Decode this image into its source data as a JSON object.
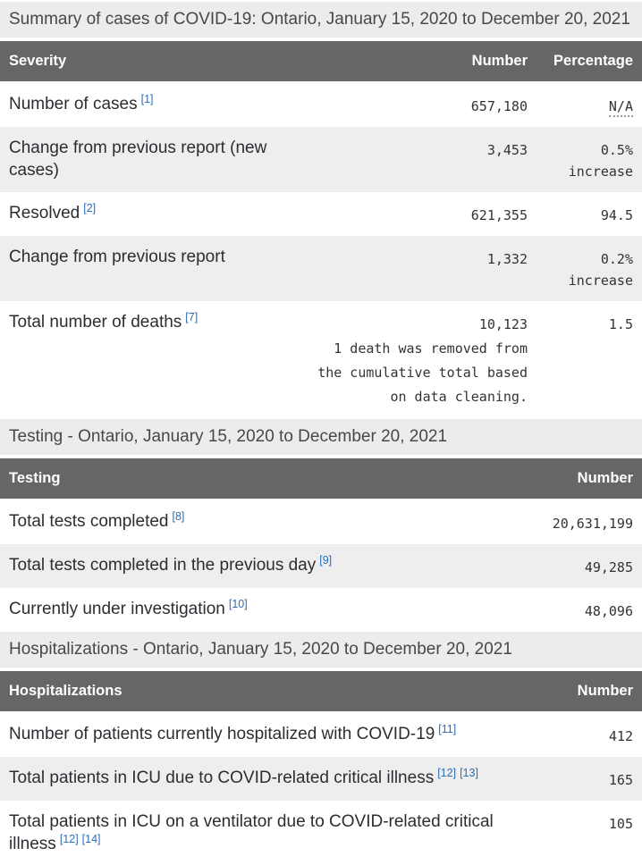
{
  "colors": {
    "header_bg": "#666668",
    "stripe_bg": "#eeeeef",
    "caption_bg": "#ececed",
    "footnote_blue": "#2b6cb8",
    "header_text": "#ffffff",
    "body_text": "#2c2d32",
    "number_text": "#333333"
  },
  "sections": [
    {
      "caption": "Summary of cases of COVID-19: Ontario, January 15, 2020 to December 20, 2021",
      "columns": [
        "Severity",
        "Number",
        "Percentage"
      ],
      "rows": [
        {
          "label": "Number of cases",
          "footnotes": [
            "[1]"
          ],
          "number": "657,180",
          "percentage": [
            "N/A"
          ],
          "percentage_abbr": true
        },
        {
          "label": "Change from previous report (new cases)",
          "footnotes": [],
          "number": "3,453",
          "percentage": [
            "0.5%",
            "increase"
          ]
        },
        {
          "label": "Resolved",
          "footnotes": [
            "[2]"
          ],
          "number": "621,355",
          "percentage": [
            "94.5"
          ]
        },
        {
          "label": "Change from previous report",
          "footnotes": [],
          "number": "1,332",
          "percentage": [
            "0.2%",
            "increase"
          ]
        },
        {
          "label": "Total number of deaths",
          "footnotes": [
            "[7]"
          ],
          "number": "10,123",
          "number_note": [
            "1 death was removed from",
            "the cumulative total based",
            "on data cleaning."
          ],
          "percentage": [
            "1.5"
          ]
        }
      ]
    },
    {
      "caption": "Testing - Ontario, January 15, 2020 to December 20, 2021",
      "columns": [
        "Testing",
        "Number"
      ],
      "rows": [
        {
          "label": "Total tests completed",
          "footnotes": [
            "[8]"
          ],
          "number": "20,631,199"
        },
        {
          "label": "Total tests completed in the previous day",
          "footnotes": [
            "[9]"
          ],
          "number": "49,285"
        },
        {
          "label": "Currently under investigation",
          "footnotes": [
            "[10]"
          ],
          "number": "48,096"
        }
      ]
    },
    {
      "caption": "Hospitalizations - Ontario, January 15, 2020 to December 20, 2021",
      "columns": [
        "Hospitalizations",
        "Number"
      ],
      "rows": [
        {
          "label": "Number of patients currently hospitalized with COVID-19",
          "footnotes": [
            "[11]"
          ],
          "number": "412"
        },
        {
          "label": "Total patients in ICU due to COVID-related critical illness",
          "footnotes": [
            "[12]",
            "[13]"
          ],
          "number": "165"
        },
        {
          "label": "Total patients in ICU on a ventilator due to COVID-related critical illness",
          "footnotes": [
            "[12]",
            "[14]"
          ],
          "number": "105"
        }
      ]
    }
  ]
}
